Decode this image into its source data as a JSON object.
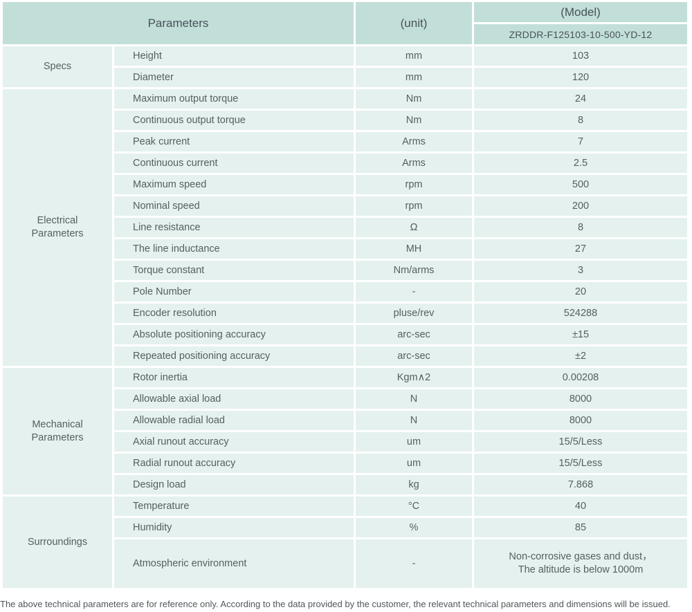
{
  "header": {
    "parameters_label": "Parameters",
    "unit_label": "(unit)",
    "model_label": "(Model)",
    "model_value": "ZRDDR-F125103-10-500-YD-12"
  },
  "groups": [
    {
      "name": "Specs",
      "rows": [
        {
          "param": "Height",
          "unit": "mm",
          "value": "103"
        },
        {
          "param": "Diameter",
          "unit": "mm",
          "value": "120"
        }
      ]
    },
    {
      "name": "Electrical\nParameters",
      "rows": [
        {
          "param": "Maximum output torque",
          "unit": "Nm",
          "value": "24"
        },
        {
          "param": "Continuous output torque",
          "unit": "Nm",
          "value": "8"
        },
        {
          "param": "Peak current",
          "unit": "Arms",
          "value": "7"
        },
        {
          "param": "Continuous current",
          "unit": "Arms",
          "value": "2.5"
        },
        {
          "param": "Maximum speed",
          "unit": "rpm",
          "value": "500"
        },
        {
          "param": "Nominal speed",
          "unit": "rpm",
          "value": "200"
        },
        {
          "param": "Line resistance",
          "unit": "Ω",
          "value": "8"
        },
        {
          "param": "The line inductance",
          "unit": "MH",
          "value": "27"
        },
        {
          "param": "Torque constant",
          "unit": "Nm/arms",
          "value": "3"
        },
        {
          "param": "Pole Number",
          "unit": "-",
          "value": "20"
        },
        {
          "param": "Encoder resolution",
          "unit": "pluse/rev",
          "value": "524288"
        },
        {
          "param": "Absolute positioning accuracy",
          "unit": "arc-sec",
          "value": "±15"
        },
        {
          "param": "Repeated positioning accuracy",
          "unit": "arc-sec",
          "value": "±2"
        }
      ]
    },
    {
      "name": "Mechanical\nParameters",
      "rows": [
        {
          "param": "Rotor inertia",
          "unit": "Kgm∧2",
          "value": "0.00208"
        },
        {
          "param": "Allowable axial load",
          "unit": "N",
          "value": "8000"
        },
        {
          "param": "Allowable radial load",
          "unit": "N",
          "value": "8000"
        },
        {
          "param": "Axial runout accuracy",
          "unit": "um",
          "value": "15/5/Less"
        },
        {
          "param": "Radial runout accuracy",
          "unit": "um",
          "value": "15/5/Less"
        },
        {
          "param": "Design load",
          "unit": "kg",
          "value": "7.868"
        }
      ]
    },
    {
      "name": "Surroundings",
      "rows": [
        {
          "param": "Temperature",
          "unit": "°C",
          "value": "40"
        },
        {
          "param": "Humidity",
          "unit": "%",
          "value": "85"
        },
        {
          "param": "Atmospheric environment",
          "unit": "-",
          "value": "Non-corrosive gases and dust，\nThe altitude is below 1000m",
          "tall": true
        }
      ]
    }
  ],
  "footnote": "The above technical parameters are for reference only. According to the data provided by the customer, the relevant technical parameters and dimensions will be issued.",
  "colors": {
    "header_bg": "#c2ded8",
    "row_bg": "#e4f1ee",
    "header_text": "#47525a",
    "cell_text": "#565e61",
    "border": "#ffffff"
  }
}
